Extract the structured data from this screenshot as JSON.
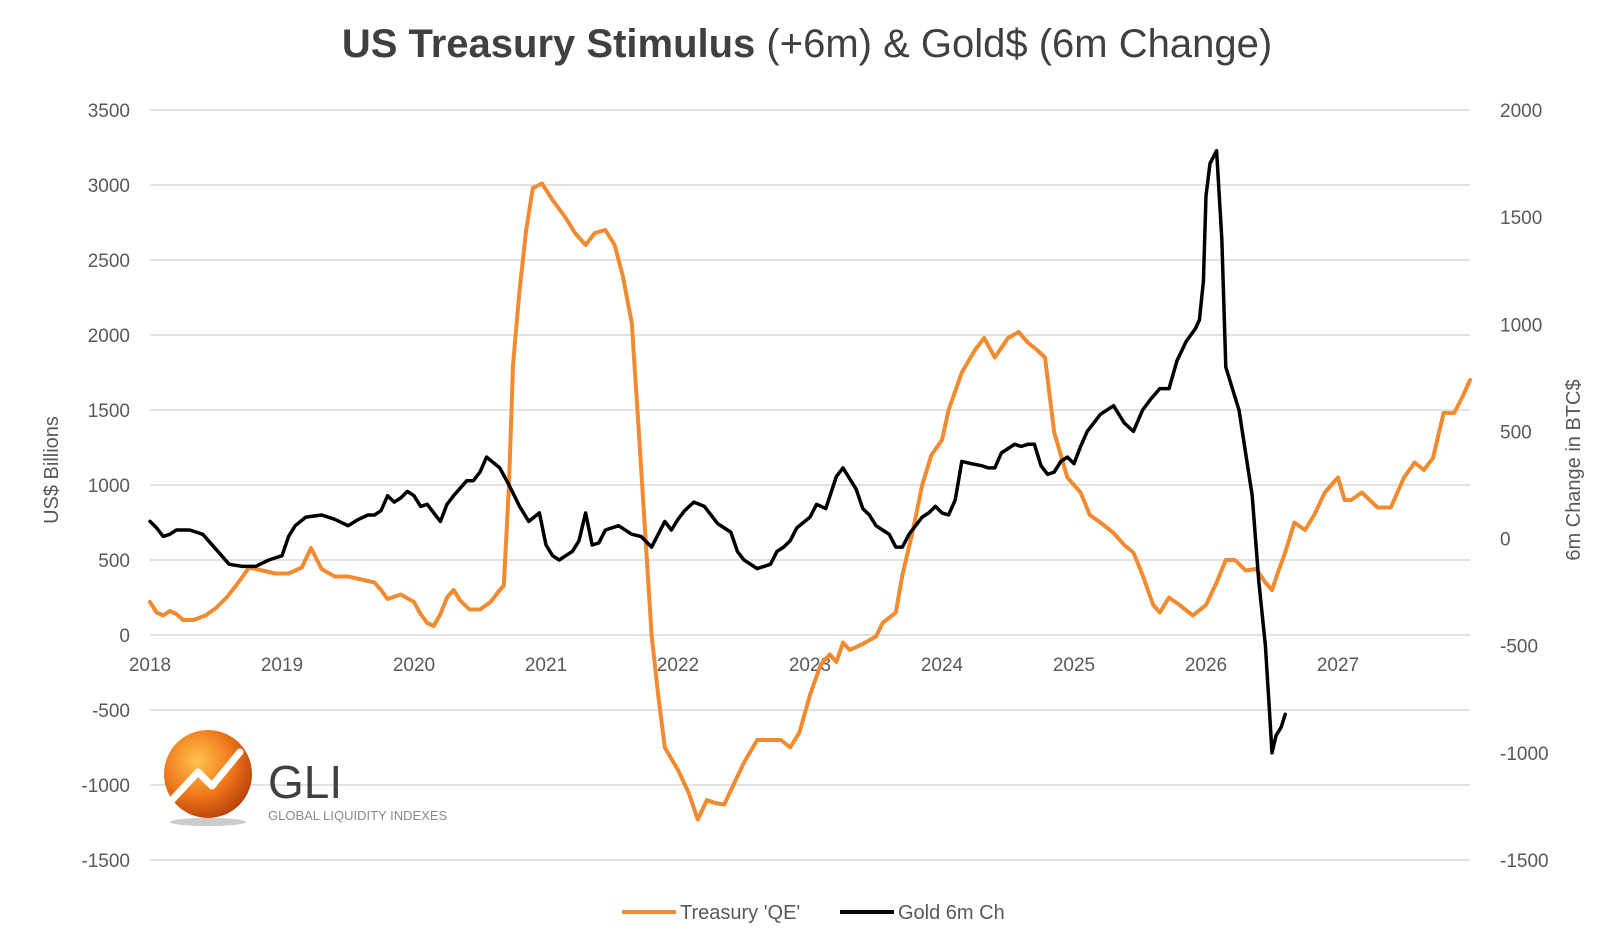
{
  "chart_data": {
    "type": "line",
    "title_bold": "US Treasury Stimulus",
    "title_rest": " (+6m) & Gold$ (6m Change)",
    "ylabel_left": "US$ Billions",
    "ylabel_right": "6m Change in BTC$",
    "ylim_left": [
      -1500,
      3500
    ],
    "ylim_right": [
      -1500,
      2000
    ],
    "yticks_left": [
      3500,
      3000,
      2500,
      2000,
      1500,
      1000,
      500,
      0,
      -500,
      -1000,
      -1500
    ],
    "yticks_right": [
      2000,
      1500,
      1000,
      500,
      0,
      -500,
      -1000,
      -1500
    ],
    "xlim": [
      2018.0,
      2028.0
    ],
    "xticks": [
      "2018",
      "2019",
      "2020",
      "2021",
      "2022",
      "2023",
      "2024",
      "2025",
      "2026",
      "2027"
    ],
    "grid": "horizontal",
    "legend_position": "bottom",
    "colors": {
      "treasury": "#f28a30",
      "gold": "#000000"
    },
    "series": [
      {
        "name": "Treasury 'QE'",
        "axis": "left",
        "points": [
          [
            2018.0,
            220
          ],
          [
            2018.05,
            150
          ],
          [
            2018.1,
            130
          ],
          [
            2018.15,
            160
          ],
          [
            2018.2,
            140
          ],
          [
            2018.25,
            100
          ],
          [
            2018.33,
            100
          ],
          [
            2018.42,
            130
          ],
          [
            2018.5,
            180
          ],
          [
            2018.58,
            250
          ],
          [
            2018.67,
            350
          ],
          [
            2018.75,
            450
          ],
          [
            2018.85,
            430
          ],
          [
            2018.95,
            410
          ],
          [
            2019.05,
            410
          ],
          [
            2019.15,
            450
          ],
          [
            2019.22,
            580
          ],
          [
            2019.3,
            440
          ],
          [
            2019.4,
            390
          ],
          [
            2019.5,
            390
          ],
          [
            2019.6,
            370
          ],
          [
            2019.7,
            350
          ],
          [
            2019.75,
            300
          ],
          [
            2019.8,
            240
          ],
          [
            2019.9,
            270
          ],
          [
            2020.0,
            220
          ],
          [
            2020.05,
            140
          ],
          [
            2020.1,
            80
          ],
          [
            2020.15,
            60
          ],
          [
            2020.2,
            140
          ],
          [
            2020.25,
            250
          ],
          [
            2020.3,
            300
          ],
          [
            2020.35,
            230
          ],
          [
            2020.42,
            170
          ],
          [
            2020.5,
            170
          ],
          [
            2020.58,
            220
          ],
          [
            2020.65,
            300
          ],
          [
            2020.68,
            330
          ],
          [
            2020.72,
            1000
          ],
          [
            2020.75,
            1800
          ],
          [
            2020.8,
            2300
          ],
          [
            2020.85,
            2700
          ],
          [
            2020.9,
            2980
          ],
          [
            2020.97,
            3010
          ],
          [
            2021.05,
            2900
          ],
          [
            2021.15,
            2780
          ],
          [
            2021.22,
            2680
          ],
          [
            2021.3,
            2600
          ],
          [
            2021.37,
            2680
          ],
          [
            2021.45,
            2700
          ],
          [
            2021.52,
            2600
          ],
          [
            2021.58,
            2400
          ],
          [
            2021.65,
            2080
          ],
          [
            2021.7,
            1400
          ],
          [
            2021.75,
            700
          ],
          [
            2021.8,
            0
          ],
          [
            2021.85,
            -400
          ],
          [
            2021.9,
            -750
          ],
          [
            2022.0,
            -900
          ],
          [
            2022.08,
            -1050
          ],
          [
            2022.15,
            -1230
          ],
          [
            2022.22,
            -1100
          ],
          [
            2022.28,
            -1120
          ],
          [
            2022.35,
            -1130
          ],
          [
            2022.42,
            -1000
          ],
          [
            2022.5,
            -850
          ],
          [
            2022.6,
            -700
          ],
          [
            2022.7,
            -700
          ],
          [
            2022.78,
            -700
          ],
          [
            2022.85,
            -750
          ],
          [
            2022.92,
            -650
          ],
          [
            2023.0,
            -400
          ],
          [
            2023.08,
            -200
          ],
          [
            2023.15,
            -130
          ],
          [
            2023.2,
            -180
          ],
          [
            2023.25,
            -50
          ],
          [
            2023.3,
            -100
          ],
          [
            2023.4,
            -60
          ],
          [
            2023.5,
            -10
          ],
          [
            2023.55,
            80
          ],
          [
            2023.65,
            150
          ],
          [
            2023.7,
            400
          ],
          [
            2023.78,
            700
          ],
          [
            2023.85,
            1000
          ],
          [
            2023.92,
            1200
          ],
          [
            2024.0,
            1300
          ],
          [
            2024.05,
            1500
          ],
          [
            2024.15,
            1750
          ],
          [
            2024.25,
            1900
          ],
          [
            2024.32,
            1980
          ],
          [
            2024.4,
            1850
          ],
          [
            2024.5,
            1980
          ],
          [
            2024.58,
            2020
          ],
          [
            2024.65,
            1950
          ],
          [
            2024.72,
            1900
          ],
          [
            2024.78,
            1850
          ],
          [
            2024.85,
            1350
          ],
          [
            2024.95,
            1050
          ],
          [
            2025.05,
            950
          ],
          [
            2025.12,
            800
          ],
          [
            2025.2,
            750
          ],
          [
            2025.3,
            680
          ],
          [
            2025.38,
            600
          ],
          [
            2025.45,
            550
          ],
          [
            2025.52,
            400
          ],
          [
            2025.6,
            200
          ],
          [
            2025.65,
            150
          ],
          [
            2025.72,
            250
          ],
          [
            2025.8,
            200
          ],
          [
            2025.9,
            130
          ],
          [
            2026.0,
            200
          ],
          [
            2026.08,
            350
          ],
          [
            2026.15,
            500
          ],
          [
            2026.22,
            500
          ],
          [
            2026.3,
            430
          ],
          [
            2026.38,
            440
          ],
          [
            2026.45,
            350
          ],
          [
            2026.5,
            300
          ],
          [
            2026.55,
            430
          ],
          [
            2026.6,
            550
          ],
          [
            2026.67,
            750
          ],
          [
            2026.75,
            700
          ],
          [
            2026.82,
            800
          ],
          [
            2026.9,
            950
          ],
          [
            2027.0,
            1050
          ],
          [
            2027.05,
            900
          ],
          [
            2027.1,
            900
          ],
          [
            2027.18,
            950
          ],
          [
            2027.3,
            850
          ],
          [
            2027.4,
            850
          ],
          [
            2027.5,
            1050
          ],
          [
            2027.58,
            1150
          ],
          [
            2027.65,
            1100
          ],
          [
            2027.72,
            1180
          ],
          [
            2027.8,
            1480
          ],
          [
            2027.88,
            1480
          ],
          [
            2027.95,
            1600
          ],
          [
            2028.0,
            1700
          ]
        ]
      },
      {
        "name": "Gold 6m Ch",
        "axis": "right",
        "points": [
          [
            2018.0,
            80
          ],
          [
            2018.05,
            50
          ],
          [
            2018.1,
            10
          ],
          [
            2018.15,
            20
          ],
          [
            2018.2,
            40
          ],
          [
            2018.3,
            40
          ],
          [
            2018.4,
            20
          ],
          [
            2018.5,
            -50
          ],
          [
            2018.6,
            -120
          ],
          [
            2018.7,
            -130
          ],
          [
            2018.8,
            -130
          ],
          [
            2018.9,
            -100
          ],
          [
            2019.0,
            -80
          ],
          [
            2019.05,
            10
          ],
          [
            2019.1,
            60
          ],
          [
            2019.18,
            100
          ],
          [
            2019.3,
            110
          ],
          [
            2019.4,
            90
          ],
          [
            2019.5,
            60
          ],
          [
            2019.58,
            90
          ],
          [
            2019.65,
            110
          ],
          [
            2019.7,
            110
          ],
          [
            2019.75,
            130
          ],
          [
            2019.8,
            200
          ],
          [
            2019.85,
            170
          ],
          [
            2019.9,
            190
          ],
          [
            2019.95,
            220
          ],
          [
            2020.0,
            200
          ],
          [
            2020.05,
            150
          ],
          [
            2020.1,
            160
          ],
          [
            2020.15,
            120
          ],
          [
            2020.2,
            80
          ],
          [
            2020.25,
            160
          ],
          [
            2020.3,
            200
          ],
          [
            2020.4,
            270
          ],
          [
            2020.45,
            270
          ],
          [
            2020.5,
            310
          ],
          [
            2020.55,
            380
          ],
          [
            2020.65,
            330
          ],
          [
            2020.72,
            250
          ],
          [
            2020.8,
            150
          ],
          [
            2020.87,
            80
          ],
          [
            2020.95,
            120
          ],
          [
            2021.0,
            -30
          ],
          [
            2021.05,
            -80
          ],
          [
            2021.1,
            -100
          ],
          [
            2021.15,
            -80
          ],
          [
            2021.2,
            -60
          ],
          [
            2021.25,
            -10
          ],
          [
            2021.3,
            120
          ],
          [
            2021.35,
            -30
          ],
          [
            2021.4,
            -20
          ],
          [
            2021.45,
            40
          ],
          [
            2021.55,
            60
          ],
          [
            2021.65,
            20
          ],
          [
            2021.72,
            10
          ],
          [
            2021.8,
            -40
          ],
          [
            2021.85,
            20
          ],
          [
            2021.9,
            80
          ],
          [
            2021.95,
            40
          ],
          [
            2022.0,
            90
          ],
          [
            2022.05,
            130
          ],
          [
            2022.12,
            170
          ],
          [
            2022.2,
            150
          ],
          [
            2022.3,
            70
          ],
          [
            2022.4,
            30
          ],
          [
            2022.45,
            -60
          ],
          [
            2022.5,
            -100
          ],
          [
            2022.6,
            -140
          ],
          [
            2022.7,
            -120
          ],
          [
            2022.75,
            -60
          ],
          [
            2022.8,
            -40
          ],
          [
            2022.85,
            -10
          ],
          [
            2022.9,
            50
          ],
          [
            2023.0,
            100
          ],
          [
            2023.05,
            160
          ],
          [
            2023.12,
            140
          ],
          [
            2023.2,
            290
          ],
          [
            2023.25,
            330
          ],
          [
            2023.3,
            280
          ],
          [
            2023.35,
            230
          ],
          [
            2023.4,
            140
          ],
          [
            2023.45,
            110
          ],
          [
            2023.5,
            60
          ],
          [
            2023.55,
            40
          ],
          [
            2023.6,
            20
          ],
          [
            2023.65,
            -40
          ],
          [
            2023.7,
            -40
          ],
          [
            2023.75,
            20
          ],
          [
            2023.8,
            60
          ],
          [
            2023.85,
            100
          ],
          [
            2023.9,
            120
          ],
          [
            2023.95,
            150
          ],
          [
            2024.0,
            120
          ],
          [
            2024.05,
            110
          ],
          [
            2024.1,
            180
          ],
          [
            2024.15,
            360
          ],
          [
            2024.22,
            350
          ],
          [
            2024.3,
            340
          ],
          [
            2024.35,
            330
          ],
          [
            2024.4,
            330
          ],
          [
            2024.45,
            400
          ],
          [
            2024.5,
            420
          ],
          [
            2024.55,
            440
          ],
          [
            2024.6,
            430
          ],
          [
            2024.65,
            440
          ],
          [
            2024.7,
            440
          ],
          [
            2024.75,
            340
          ],
          [
            2024.8,
            300
          ],
          [
            2024.85,
            310
          ],
          [
            2024.9,
            360
          ],
          [
            2024.95,
            380
          ],
          [
            2025.0,
            350
          ],
          [
            2025.05,
            430
          ],
          [
            2025.1,
            500
          ],
          [
            2025.15,
            540
          ],
          [
            2025.2,
            580
          ],
          [
            2025.3,
            620
          ],
          [
            2025.38,
            540
          ],
          [
            2025.45,
            500
          ],
          [
            2025.52,
            600
          ],
          [
            2025.58,
            650
          ],
          [
            2025.65,
            700
          ],
          [
            2025.72,
            700
          ],
          [
            2025.78,
            830
          ],
          [
            2025.85,
            920
          ],
          [
            2025.92,
            980
          ],
          [
            2025.95,
            1020
          ],
          [
            2025.98,
            1200
          ],
          [
            2026.0,
            1600
          ],
          [
            2026.03,
            1750
          ],
          [
            2026.08,
            1810
          ],
          [
            2026.12,
            1400
          ],
          [
            2026.15,
            800
          ],
          [
            2026.2,
            700
          ],
          [
            2026.25,
            600
          ],
          [
            2026.3,
            400
          ],
          [
            2026.35,
            200
          ],
          [
            2026.4,
            -200
          ],
          [
            2026.45,
            -500
          ],
          [
            2026.48,
            -800
          ],
          [
            2026.5,
            -1000
          ],
          [
            2026.53,
            -920
          ],
          [
            2026.57,
            -880
          ],
          [
            2026.6,
            -820
          ]
        ]
      }
    ]
  },
  "legend": {
    "treasury_label": "Treasury 'QE'",
    "gold_label": "Gold 6m Ch"
  },
  "logo": {
    "name": "GLI",
    "tagline": "GLOBAL LIQUIDITY INDEXES"
  }
}
